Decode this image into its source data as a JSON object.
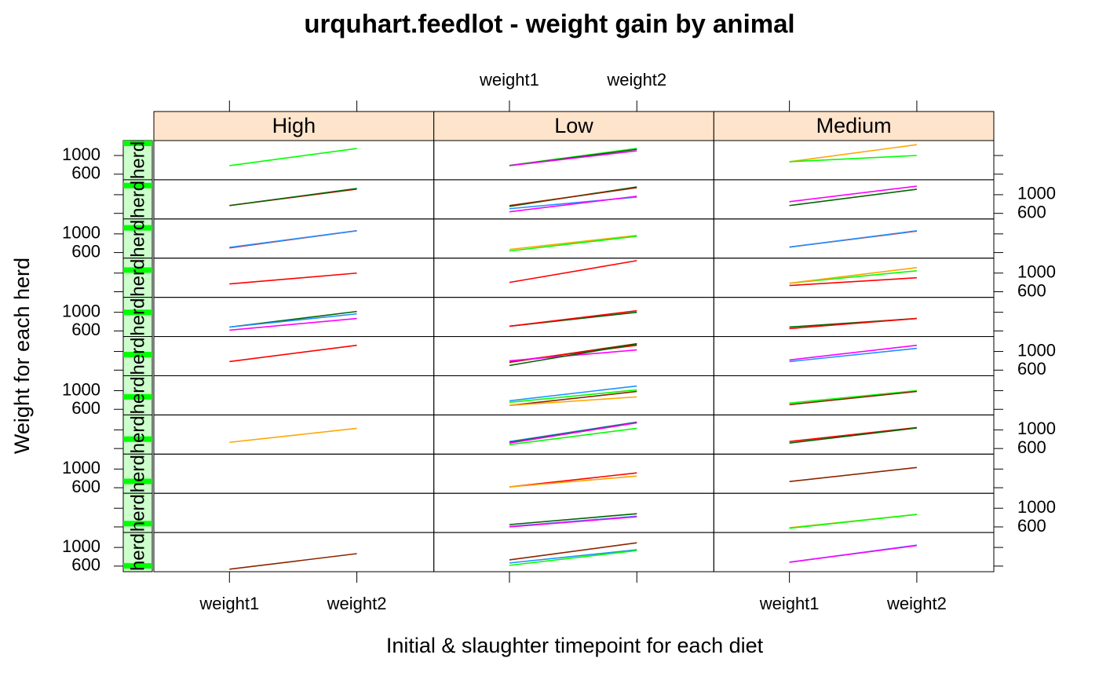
{
  "chart_data": {
    "type": "line",
    "title": "urquhart.feedlot - weight gain by animal",
    "x_label": "Initial & slaughter timepoint for each diet",
    "y_label": "Weight for each herd",
    "strip_label": "herd",
    "diets": [
      "High",
      "Low",
      "Medium"
    ],
    "categories": [
      "weight1",
      "weight2"
    ],
    "rows": 11,
    "ylim": [
      480,
      1320
    ],
    "yticks": [
      600,
      1000
    ],
    "panels": [
      {
        "diet": 0,
        "row": 0,
        "series": [
          {
            "color": "#00ff00",
            "values": [
              783,
              1150
            ]
          }
        ]
      },
      {
        "diet": 1,
        "row": 0,
        "series": [
          {
            "color": "#00ff00",
            "values": [
              790,
              1150
            ]
          },
          {
            "color": "#006400",
            "values": [
              783,
              1133
            ]
          },
          {
            "color": "#ff00ff",
            "values": [
              783,
              1100
            ]
          }
        ]
      },
      {
        "diet": 2,
        "row": 0,
        "series": [
          {
            "color": "#ffa500",
            "values": [
              867,
              1233
            ]
          },
          {
            "color": "#00ff00",
            "values": [
              867,
              1000
            ]
          }
        ]
      },
      {
        "diet": 0,
        "row": 1,
        "series": [
          {
            "color": "#ff0000",
            "values": [
              767,
              1120
            ]
          },
          {
            "color": "#006400",
            "values": [
              767,
              1133
            ]
          }
        ]
      },
      {
        "diet": 1,
        "row": 1,
        "series": [
          {
            "color": "#006400",
            "values": [
              750,
              1167
            ]
          },
          {
            "color": "#8b2500",
            "values": [
              767,
              1150
            ]
          },
          {
            "color": "#1e90ff",
            "values": [
              700,
              950
            ]
          },
          {
            "color": "#ff00ff",
            "values": [
              633,
              967
            ]
          }
        ]
      },
      {
        "diet": 2,
        "row": 1,
        "series": [
          {
            "color": "#ff00ff",
            "values": [
              850,
              1183
            ]
          },
          {
            "color": "#006400",
            "values": [
              767,
              1117
            ]
          }
        ]
      },
      {
        "diet": 0,
        "row": 2,
        "series": [
          {
            "color": "#ff0000",
            "values": [
              700,
              1067
            ]
          },
          {
            "color": "#1e90ff",
            "values": [
              710,
              1067
            ]
          }
        ]
      },
      {
        "diet": 1,
        "row": 2,
        "series": [
          {
            "color": "#ffa500",
            "values": [
              667,
              967
            ]
          },
          {
            "color": "#00ff00",
            "values": [
              633,
              950
            ]
          }
        ]
      },
      {
        "diet": 2,
        "row": 2,
        "series": [
          {
            "color": "#ff0000",
            "values": [
              717,
              1060
            ]
          },
          {
            "color": "#1e90ff",
            "values": [
              717,
              1067
            ]
          }
        ]
      },
      {
        "diet": 0,
        "row": 3,
        "series": [
          {
            "color": "#ff0000",
            "values": [
              767,
              1000
            ]
          }
        ]
      },
      {
        "diet": 1,
        "row": 3,
        "series": [
          {
            "color": "#ff0000",
            "values": [
              800,
              1267
            ]
          }
        ]
      },
      {
        "diet": 2,
        "row": 3,
        "series": [
          {
            "color": "#00ff00",
            "values": [
              783,
              1050
            ]
          },
          {
            "color": "#ffa500",
            "values": [
              783,
              1117
            ]
          },
          {
            "color": "#ff0000",
            "values": [
              733,
              900
            ]
          }
        ]
      },
      {
        "diet": 0,
        "row": 4,
        "series": [
          {
            "color": "#006400",
            "values": [
              683,
              1017
            ]
          },
          {
            "color": "#1e90ff",
            "values": [
              683,
              967
            ]
          },
          {
            "color": "#ff00ff",
            "values": [
              617,
              867
            ]
          }
        ]
      },
      {
        "diet": 1,
        "row": 4,
        "series": [
          {
            "color": "#006400",
            "values": [
              700,
              1000
            ]
          },
          {
            "color": "#ff0000",
            "values": [
              700,
              1033
            ]
          }
        ]
      },
      {
        "diet": 2,
        "row": 4,
        "series": [
          {
            "color": "#006400",
            "values": [
              683,
              867
            ]
          },
          {
            "color": "#ff0000",
            "values": [
              650,
              867
            ]
          }
        ]
      },
      {
        "diet": 0,
        "row": 5,
        "series": [
          {
            "color": "#ff0000",
            "values": [
              783,
              1133
            ]
          }
        ]
      },
      {
        "diet": 1,
        "row": 5,
        "series": [
          {
            "color": "#8b2500",
            "values": [
              767,
              1167
            ]
          },
          {
            "color": "#ff0000",
            "values": [
              783,
              1133
            ]
          },
          {
            "color": "#ff00ff",
            "values": [
              800,
              1033
            ]
          },
          {
            "color": "#006400",
            "values": [
              700,
              1160
            ]
          }
        ]
      },
      {
        "diet": 2,
        "row": 5,
        "series": [
          {
            "color": "#ff00ff",
            "values": [
              817,
              1133
            ]
          },
          {
            "color": "#1e90ff",
            "values": [
              783,
              1067
            ]
          }
        ]
      },
      {
        "diet": 1,
        "row": 6,
        "series": [
          {
            "color": "#1e90ff",
            "values": [
              783,
              1100
            ]
          },
          {
            "color": "#00ff00",
            "values": [
              750,
              1017
            ]
          },
          {
            "color": "#8b2500",
            "values": [
              683,
              983
            ]
          },
          {
            "color": "#ffa500",
            "values": [
              683,
              867
            ]
          }
        ]
      },
      {
        "diet": 2,
        "row": 6,
        "series": [
          {
            "color": "#00ff00",
            "values": [
              733,
              1000
            ]
          },
          {
            "color": "#8b2500",
            "values": [
              700,
              983
            ]
          }
        ]
      },
      {
        "diet": 0,
        "row": 7,
        "series": [
          {
            "color": "#ffa500",
            "values": [
              733,
              1033
            ]
          }
        ]
      },
      {
        "diet": 1,
        "row": 7,
        "series": [
          {
            "color": "#1e90ff",
            "values": [
              750,
              1167
            ]
          },
          {
            "color": "#006400",
            "values": [
              733,
              1160
            ]
          },
          {
            "color": "#ff00ff",
            "values": [
              717,
              1150
            ]
          },
          {
            "color": "#00ff00",
            "values": [
              683,
              1033
            ]
          }
        ]
      },
      {
        "diet": 2,
        "row": 7,
        "series": [
          {
            "color": "#ff0000",
            "values": [
              750,
              1050
            ]
          },
          {
            "color": "#006400",
            "values": [
              717,
              1040
            ]
          }
        ]
      },
      {
        "diet": 1,
        "row": 8,
        "series": [
          {
            "color": "#ff0000",
            "values": [
              617,
              917
            ]
          },
          {
            "color": "#ffa500",
            "values": [
              617,
              850
            ]
          }
        ]
      },
      {
        "diet": 2,
        "row": 8,
        "series": [
          {
            "color": "#8b2500",
            "values": [
              733,
              1033
            ]
          }
        ]
      },
      {
        "diet": 1,
        "row": 9,
        "series": [
          {
            "color": "#006400",
            "values": [
              650,
              883
            ]
          },
          {
            "color": "#1e90ff",
            "values": [
              610,
              830
            ]
          },
          {
            "color": "#ff00ff",
            "values": [
              600,
              817
            ]
          }
        ]
      },
      {
        "diet": 2,
        "row": 9,
        "series": [
          {
            "color": "#ffa500",
            "values": [
              583,
              867
            ]
          },
          {
            "color": "#00ff00",
            "values": [
              570,
              867
            ]
          }
        ]
      },
      {
        "diet": 0,
        "row": 10,
        "series": [
          {
            "color": "#8b2500",
            "values": [
              533,
              867
            ]
          }
        ]
      },
      {
        "diet": 1,
        "row": 10,
        "series": [
          {
            "color": "#8b2500",
            "values": [
              733,
              1100
            ]
          },
          {
            "color": "#1e90ff",
            "values": [
              667,
              950
            ]
          },
          {
            "color": "#00ff00",
            "values": [
              617,
              933
            ]
          }
        ]
      },
      {
        "diet": 2,
        "row": 10,
        "series": [
          {
            "color": "#1e90ff",
            "values": [
              683,
              1050
            ]
          },
          {
            "color": "#ff00ff",
            "values": [
              683,
              1040
            ]
          }
        ]
      }
    ]
  }
}
